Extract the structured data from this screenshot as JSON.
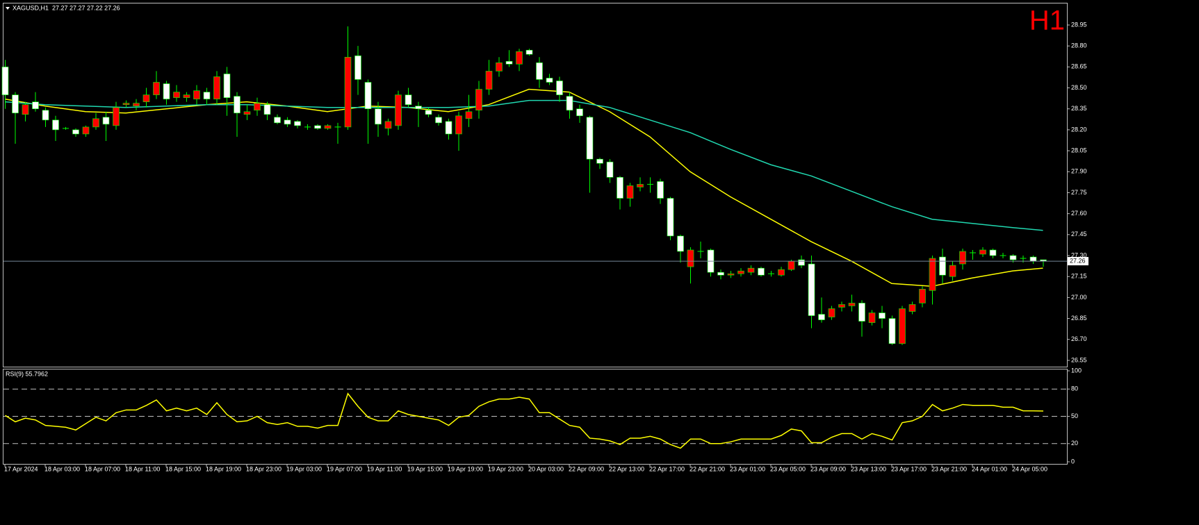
{
  "chart_data": [
    {
      "type": "candlestick",
      "title": "XAGUSD,H1  27.27 27.27 27.22 27.26",
      "watermark": "H1",
      "categories": [
        "17 Apr 2024",
        null,
        null,
        null,
        "18 Apr 03:00",
        null,
        null,
        null,
        "18 Apr 07:00",
        null,
        null,
        null,
        "18 Apr 11:00",
        null,
        null,
        null,
        "18 Apr 15:00",
        null,
        null,
        null,
        "18 Apr 19:00",
        null,
        null,
        null,
        "18 Apr 23:00",
        null,
        null,
        null,
        "19 Apr 03:00",
        null,
        null,
        null,
        "19 Apr 07:00",
        null,
        null,
        null,
        "19 Apr 11:00",
        null,
        null,
        null,
        "19 Apr 15:00",
        null,
        null,
        null,
        "19 Apr 19:00",
        null,
        null,
        null,
        "19 Apr 23:00",
        null,
        null,
        null,
        "20 Apr 03:00",
        null,
        null,
        null,
        "22 Apr 09:00",
        null,
        null,
        null,
        "22 Apr 13:00",
        null,
        null,
        null,
        "22 Apr 17:00",
        null,
        null,
        null,
        "22 Apr 21:00",
        null,
        null,
        null,
        "23 Apr 01:00",
        null,
        null,
        null,
        "23 Apr 05:00",
        null,
        null,
        null,
        "23 Apr 09:00",
        null,
        null,
        null,
        "23 Apr 13:00",
        null,
        null,
        null,
        "23 Apr 17:00",
        null,
        null,
        null,
        "23 Apr 21:00",
        null,
        null,
        null,
        "24 Apr 01:00",
        null,
        null,
        null,
        "24 Apr 05:00",
        null,
        null,
        null
      ],
      "open": [
        28.65,
        28.45,
        28.31,
        28.4,
        28.34,
        28.27,
        28.21,
        28.2,
        28.17,
        28.22,
        28.29,
        28.23,
        28.38,
        28.37,
        28.4,
        28.45,
        28.53,
        28.43,
        28.43,
        28.42,
        28.47,
        28.42,
        28.6,
        28.44,
        28.31,
        28.34,
        28.38,
        28.29,
        28.27,
        28.26,
        28.22,
        28.23,
        28.21,
        28.22,
        28.22,
        28.73,
        28.54,
        28.35,
        28.21,
        28.23,
        28.45,
        28.37,
        28.34,
        28.29,
        28.26,
        28.17,
        28.28,
        28.34,
        28.49,
        28.62,
        28.69,
        28.67,
        28.77,
        28.68,
        28.57,
        28.55,
        28.44,
        28.35,
        28.29,
        27.99,
        27.97,
        27.86,
        27.71,
        27.79,
        27.81,
        27.83,
        27.71,
        27.44,
        27.22,
        27.33,
        27.34,
        27.18,
        27.16,
        27.17,
        27.18,
        27.21,
        27.17,
        27.16,
        27.2,
        27.27,
        27.24,
        26.88,
        26.86,
        26.93,
        26.94,
        26.96,
        26.82,
        26.89,
        26.85,
        26.67,
        26.9,
        26.96,
        27.05,
        27.29,
        27.15,
        27.24,
        27.32,
        27.31,
        27.34,
        27.3,
        27.3,
        27.28,
        27.29,
        27.27
      ],
      "high": [
        28.7,
        28.47,
        28.4,
        28.47,
        28.36,
        28.3,
        28.22,
        28.21,
        28.23,
        28.32,
        28.33,
        28.4,
        28.41,
        28.42,
        28.5,
        28.62,
        28.55,
        28.52,
        28.47,
        28.52,
        28.5,
        28.62,
        28.65,
        28.47,
        28.38,
        28.43,
        28.4,
        28.31,
        28.29,
        28.27,
        28.24,
        28.24,
        28.24,
        28.25,
        28.94,
        28.8,
        28.56,
        28.4,
        28.28,
        28.48,
        28.5,
        28.4,
        28.36,
        28.31,
        28.28,
        28.33,
        28.45,
        28.55,
        28.7,
        28.72,
        28.77,
        28.78,
        28.78,
        28.72,
        28.6,
        28.58,
        28.47,
        28.38,
        28.3,
        28.0,
        27.99,
        27.87,
        27.82,
        27.86,
        27.86,
        27.85,
        27.72,
        27.45,
        27.36,
        27.4,
        27.35,
        27.2,
        27.19,
        27.21,
        27.23,
        27.22,
        27.19,
        27.22,
        27.27,
        27.3,
        27.3,
        27.0,
        26.94,
        26.97,
        27.02,
        26.98,
        26.91,
        26.94,
        26.87,
        26.94,
        26.97,
        27.08,
        27.3,
        27.35,
        27.26,
        27.35,
        27.34,
        27.36,
        27.35,
        27.32,
        27.31,
        27.3,
        27.3,
        27.27
      ],
      "low": [
        28.35,
        28.1,
        28.26,
        28.33,
        28.22,
        28.12,
        28.2,
        28.15,
        28.15,
        28.2,
        28.12,
        28.2,
        28.36,
        28.34,
        28.36,
        28.42,
        28.38,
        28.4,
        28.4,
        28.38,
        28.38,
        28.38,
        28.3,
        28.15,
        28.27,
        28.3,
        28.27,
        28.24,
        28.22,
        28.21,
        28.2,
        28.2,
        28.2,
        28.1,
        28.2,
        28.45,
        28.1,
        28.15,
        28.16,
        28.2,
        28.36,
        28.22,
        28.29,
        28.23,
        28.13,
        28.05,
        28.22,
        28.28,
        28.45,
        28.58,
        28.65,
        28.62,
        28.73,
        28.5,
        28.52,
        28.4,
        28.28,
        28.25,
        27.75,
        27.92,
        27.82,
        27.63,
        27.65,
        27.76,
        27.75,
        27.67,
        27.41,
        27.25,
        27.1,
        27.28,
        27.15,
        27.13,
        27.14,
        27.15,
        27.16,
        27.15,
        27.15,
        27.15,
        27.19,
        27.21,
        26.78,
        26.82,
        26.84,
        26.9,
        26.9,
        26.72,
        26.8,
        26.78,
        26.66,
        26.66,
        26.88,
        26.93,
        26.95,
        27.1,
        27.12,
        27.2,
        27.27,
        27.29,
        27.28,
        27.28,
        27.25,
        27.25,
        27.24,
        27.22
      ],
      "close": [
        28.45,
        28.32,
        28.38,
        28.35,
        28.27,
        28.2,
        28.21,
        28.17,
        28.22,
        28.28,
        28.24,
        28.36,
        28.39,
        28.39,
        28.45,
        28.54,
        28.42,
        28.47,
        28.45,
        28.48,
        28.42,
        28.58,
        28.43,
        28.32,
        28.33,
        28.39,
        28.31,
        28.25,
        28.24,
        28.23,
        28.22,
        28.21,
        28.23,
        28.22,
        28.72,
        28.56,
        28.35,
        28.24,
        28.26,
        28.45,
        28.38,
        28.35,
        28.31,
        28.25,
        28.17,
        28.3,
        28.33,
        28.49,
        28.62,
        28.68,
        28.67,
        28.76,
        28.74,
        28.56,
        28.54,
        28.45,
        28.34,
        28.3,
        27.99,
        27.96,
        27.86,
        27.71,
        27.8,
        27.81,
        27.81,
        27.71,
        27.44,
        27.33,
        27.34,
        27.33,
        27.18,
        27.16,
        27.17,
        27.19,
        27.21,
        27.16,
        27.17,
        27.2,
        27.26,
        27.23,
        26.87,
        26.84,
        26.92,
        26.95,
        26.96,
        26.83,
        26.89,
        26.85,
        26.67,
        26.92,
        26.95,
        27.06,
        27.28,
        27.16,
        27.23,
        27.33,
        27.32,
        27.34,
        27.3,
        27.3,
        27.27,
        27.28,
        27.26,
        27.26
      ],
      "up_color": "#ff0000",
      "down_color": "#ffffff",
      "wick_color": "#00ff00",
      "ylim": [
        26.505,
        29.109
      ],
      "yticks": [
        28.95,
        28.8,
        28.65,
        28.5,
        28.35,
        28.2,
        28.05,
        27.9,
        27.75,
        27.6,
        27.45,
        27.3,
        27.15,
        27,
        26.85,
        26.7,
        26.55
      ],
      "ytick_labels": [
        "28.95",
        "28.80",
        "28.65",
        "28.50",
        "28.35",
        "28.20",
        "28.05",
        "27.90",
        "27.75",
        "27.60",
        "27.45",
        "27.30",
        "27.15",
        "27.00",
        "26.85",
        "26.70",
        "26.55"
      ],
      "bid": 27.26,
      "bid_color": "#778899",
      "overlays": [
        {
          "color": "#ffff00",
          "x": [
            0,
            4,
            8,
            12,
            16,
            20,
            24,
            28,
            32,
            36,
            40,
            44,
            48,
            52,
            56,
            60,
            64,
            68,
            72,
            76,
            80,
            84,
            88,
            92,
            96,
            100,
            103
          ],
          "values": [
            28.42,
            28.37,
            28.33,
            28.32,
            28.35,
            28.38,
            28.4,
            28.37,
            28.33,
            28.37,
            28.36,
            28.33,
            28.38,
            28.49,
            28.47,
            28.33,
            28.15,
            27.9,
            27.72,
            27.56,
            27.4,
            27.26,
            27.1,
            27.08,
            27.14,
            27.19,
            27.21
          ]
        },
        {
          "color": "#20d8b0",
          "x": [
            0,
            4,
            8,
            12,
            16,
            20,
            24,
            28,
            32,
            36,
            40,
            44,
            48,
            52,
            56,
            60,
            64,
            68,
            72,
            76,
            80,
            84,
            88,
            92,
            96,
            100,
            103
          ],
          "values": [
            28.4,
            28.38,
            28.37,
            28.36,
            28.37,
            28.38,
            28.38,
            28.37,
            28.36,
            28.36,
            28.36,
            28.36,
            28.37,
            28.41,
            28.41,
            28.36,
            28.27,
            28.18,
            28.06,
            27.95,
            27.87,
            27.76,
            27.65,
            27.56,
            27.53,
            27.5,
            27.48
          ]
        }
      ]
    },
    {
      "type": "line",
      "title": "RSI(9) 55.7962",
      "color": "#ffff00",
      "values": [
        51,
        44,
        48,
        46,
        40,
        39,
        38,
        35,
        42,
        49,
        45,
        54,
        57,
        57,
        62,
        68,
        56,
        59,
        56,
        59,
        52,
        65,
        52,
        44,
        45,
        50,
        43,
        41,
        43,
        39,
        39,
        37,
        40,
        40,
        75,
        61,
        49,
        45,
        45,
        56,
        52,
        50,
        48,
        46,
        40,
        49,
        51,
        61,
        66,
        69,
        69,
        71,
        69,
        54,
        54,
        47,
        40,
        38,
        26,
        25,
        23,
        19,
        26,
        26,
        28,
        25,
        19,
        15,
        25,
        25,
        20,
        20,
        22,
        25,
        25,
        25,
        25,
        29,
        36,
        34,
        21,
        21,
        27,
        31,
        31,
        25,
        31,
        28,
        24,
        43,
        45,
        50,
        63,
        56,
        59,
        63,
        62,
        62,
        62,
        60,
        60,
        56,
        56,
        55.7962
      ],
      "ylim": [
        0,
        100
      ],
      "yticks": [
        100,
        80,
        50,
        20,
        0
      ],
      "levels": [
        80,
        50,
        20
      ]
    }
  ]
}
